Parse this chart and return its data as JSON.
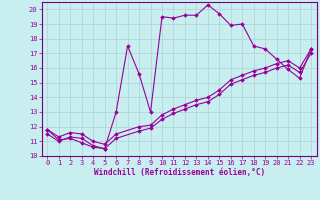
{
  "xlabel": "Windchill (Refroidissement éolien,°C)",
  "background_color": "#c8eef0",
  "grid_color": "#afd8da",
  "line_color": "#990099",
  "spine_color": "#7a007a",
  "xlim": [
    -0.5,
    23.5
  ],
  "ylim": [
    10,
    20.5
  ],
  "xticks": [
    0,
    1,
    2,
    3,
    4,
    5,
    6,
    7,
    8,
    9,
    10,
    11,
    12,
    13,
    14,
    15,
    16,
    17,
    18,
    19,
    20,
    21,
    22,
    23
  ],
  "yticks": [
    10,
    11,
    12,
    13,
    14,
    15,
    16,
    17,
    18,
    19,
    20
  ],
  "line1_x": [
    0,
    1,
    2,
    3,
    4,
    5,
    6,
    7,
    8,
    9,
    10,
    11,
    12,
    13,
    14,
    15,
    16,
    17,
    18,
    19,
    20,
    21,
    22,
    23
  ],
  "line1_y": [
    11.8,
    11.1,
    11.2,
    10.9,
    10.6,
    10.5,
    13.0,
    17.5,
    15.6,
    13.0,
    19.5,
    19.4,
    19.6,
    19.6,
    20.3,
    19.7,
    18.9,
    19.0,
    17.5,
    17.3,
    16.6,
    15.9,
    15.3,
    17.3
  ],
  "line2_x": [
    0,
    1,
    2,
    3,
    4,
    5,
    6,
    8,
    9,
    10,
    11,
    12,
    13,
    14,
    15,
    16,
    17,
    18,
    19,
    20,
    21,
    22,
    23
  ],
  "line2_y": [
    11.8,
    11.3,
    11.6,
    11.5,
    11.0,
    10.8,
    11.5,
    12.0,
    12.1,
    12.8,
    13.2,
    13.5,
    13.8,
    14.0,
    14.5,
    15.2,
    15.5,
    15.8,
    16.0,
    16.3,
    16.5,
    16.0,
    17.3
  ],
  "line3_x": [
    0,
    1,
    2,
    3,
    4,
    5,
    6,
    8,
    9,
    10,
    11,
    12,
    13,
    14,
    15,
    16,
    17,
    18,
    19,
    20,
    21,
    22,
    23
  ],
  "line3_y": [
    11.5,
    11.0,
    11.3,
    11.2,
    10.7,
    10.5,
    11.2,
    11.7,
    11.9,
    12.5,
    12.9,
    13.2,
    13.5,
    13.7,
    14.2,
    14.9,
    15.2,
    15.5,
    15.7,
    16.0,
    16.2,
    15.7,
    17.0
  ],
  "marker": "D",
  "markersize": 1.8,
  "linewidth": 0.8,
  "tick_fontsize": 5.0,
  "xlabel_fontsize": 5.5
}
